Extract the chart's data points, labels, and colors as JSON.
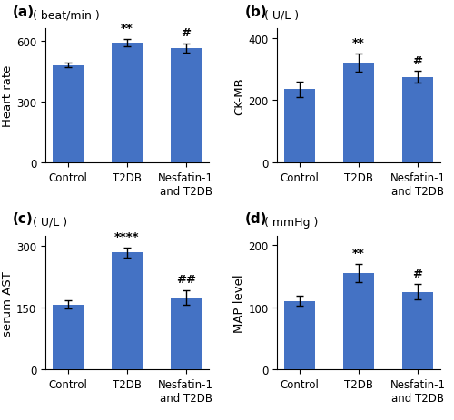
{
  "subplots": [
    {
      "label": "(a)",
      "ylabel": "Heart rate",
      "unit": "( beat/min )",
      "categories": [
        "Control",
        "T2DB",
        "Nesfatin-1\nand T2DB"
      ],
      "values": [
        480,
        592,
        565
      ],
      "errors": [
        10,
        18,
        22
      ],
      "ylim": [
        0,
        660
      ],
      "yticks": [
        0,
        300,
        600
      ],
      "annotations": [
        "",
        "**",
        "#"
      ],
      "annot_yi": [
        1,
        1,
        2
      ]
    },
    {
      "label": "(b)",
      "ylabel": "CK-MB",
      "unit": "( U/L )",
      "categories": [
        "Control",
        "T2DB",
        "Nesfatin-1\nand T2DB"
      ],
      "values": [
        235,
        320,
        275
      ],
      "errors": [
        25,
        30,
        18
      ],
      "ylim": [
        0,
        430
      ],
      "yticks": [
        0,
        200,
        400
      ],
      "annotations": [
        "",
        "**",
        "#"
      ],
      "annot_yi": [
        1,
        1,
        2
      ]
    },
    {
      "label": "(c)",
      "ylabel": "serum AST",
      "unit": "( U/L )",
      "categories": [
        "Control",
        "T2DB",
        "Nesfatin-1\nand T2DB"
      ],
      "values": [
        158,
        285,
        175
      ],
      "errors": [
        10,
        12,
        18
      ],
      "ylim": [
        0,
        325
      ],
      "yticks": [
        0,
        150,
        300
      ],
      "annotations": [
        "",
        "****",
        "##"
      ],
      "annot_yi": [
        1,
        1,
        2
      ]
    },
    {
      "label": "(d)",
      "ylabel": "MAP level",
      "unit": "( mmHg )",
      "categories": [
        "Control",
        "T2DB",
        "Nesfatin-1\nand T2DB"
      ],
      "values": [
        110,
        155,
        125
      ],
      "errors": [
        8,
        15,
        12
      ],
      "ylim": [
        0,
        215
      ],
      "yticks": [
        0,
        100,
        200
      ],
      "annotations": [
        "",
        "**",
        "#"
      ],
      "annot_yi": [
        1,
        1,
        2
      ]
    }
  ],
  "bar_color": "#4472C4",
  "bar_width": 0.52,
  "background_color": "#ffffff",
  "tick_fontsize": 8.5,
  "ylabel_fontsize": 9.5,
  "unit_fontsize": 9,
  "annot_fontsize": 9.5,
  "label_fontsize": 11
}
